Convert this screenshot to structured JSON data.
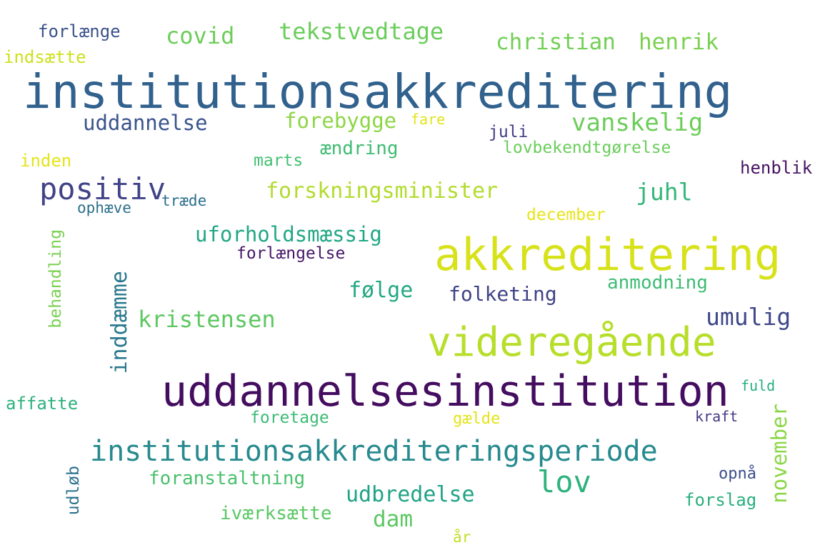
{
  "words": [
    {
      "text": "institutionsakkreditering",
      "color": "#31618d"
    },
    {
      "text": "akkreditering",
      "color": "#d7e21b"
    },
    {
      "text": "uddannelsesinstitution",
      "color": "#440d5f"
    },
    {
      "text": "videregående",
      "color": "#b7de2a"
    },
    {
      "text": "institutionsakkrediteringsperiode",
      "color": "#278a8e"
    },
    {
      "text": "positiv",
      "color": "#414388"
    },
    {
      "text": "forskningsminister",
      "color": "#b2dc2e"
    },
    {
      "text": "lov",
      "color": "#2eb37c"
    },
    {
      "text": "kristensen",
      "color": "#5ec862"
    },
    {
      "text": "covid",
      "color": "#6ccd59"
    },
    {
      "text": "tekstvedtage",
      "color": "#6acd5b"
    },
    {
      "text": "christian",
      "color": "#72d056"
    },
    {
      "text": "henrik",
      "color": "#7ad151"
    },
    {
      "text": "uddannelse",
      "color": "#3a548c"
    },
    {
      "text": "forebygge",
      "color": "#8dd644"
    },
    {
      "text": "vanskelig",
      "color": "#6ccd5a"
    },
    {
      "text": "juhl",
      "color": "#35b779"
    },
    {
      "text": "uforholdsmæssig",
      "color": "#22a785"
    },
    {
      "text": "følge",
      "color": "#24a883"
    },
    {
      "text": "folketing",
      "color": "#404387"
    },
    {
      "text": "umulig",
      "color": "#3f4889"
    },
    {
      "text": "udbredelse",
      "color": "#20a386"
    },
    {
      "text": "inddæmme",
      "color": "#2a788e"
    },
    {
      "text": "november",
      "color": "#8bd646"
    },
    {
      "text": "forlænge",
      "color": "#3b528b"
    },
    {
      "text": "indsætte",
      "color": "#cde11d"
    },
    {
      "text": "fare",
      "color": "#e2e418"
    },
    {
      "text": "juli",
      "color": "#423f85"
    },
    {
      "text": "ændring",
      "color": "#3fbc73"
    },
    {
      "text": "lovbekendtgørelse",
      "color": "#6acd5b"
    },
    {
      "text": "inden",
      "color": "#e5e419"
    },
    {
      "text": "marts",
      "color": "#43bf71"
    },
    {
      "text": "henblik",
      "color": "#471365"
    },
    {
      "text": "ophæve",
      "color": "#2d708e"
    },
    {
      "text": "træde",
      "color": "#2e6f8e"
    },
    {
      "text": "december",
      "color": "#e8e419"
    },
    {
      "text": "forlængelse",
      "color": "#48186a"
    },
    {
      "text": "behandling",
      "color": "#7ad151"
    },
    {
      "text": "anmodning",
      "color": "#3dbc74"
    },
    {
      "text": "affatte",
      "color": "#2db27d"
    },
    {
      "text": "foretage",
      "color": "#3cbb75"
    },
    {
      "text": "gælde",
      "color": "#e5e419"
    },
    {
      "text": "fuld",
      "color": "#29af7f"
    },
    {
      "text": "kraft",
      "color": "#453882"
    },
    {
      "text": "foranstaltning",
      "color": "#4ac16d"
    },
    {
      "text": "opnå",
      "color": "#3c4f8a"
    },
    {
      "text": "udløb",
      "color": "#2c728e"
    },
    {
      "text": "iværksætte",
      "color": "#5ac864"
    },
    {
      "text": "dam",
      "color": "#5cc863"
    },
    {
      "text": "forslag",
      "color": "#2ab07f"
    },
    {
      "text": "år",
      "color": "#c0df25"
    }
  ]
}
